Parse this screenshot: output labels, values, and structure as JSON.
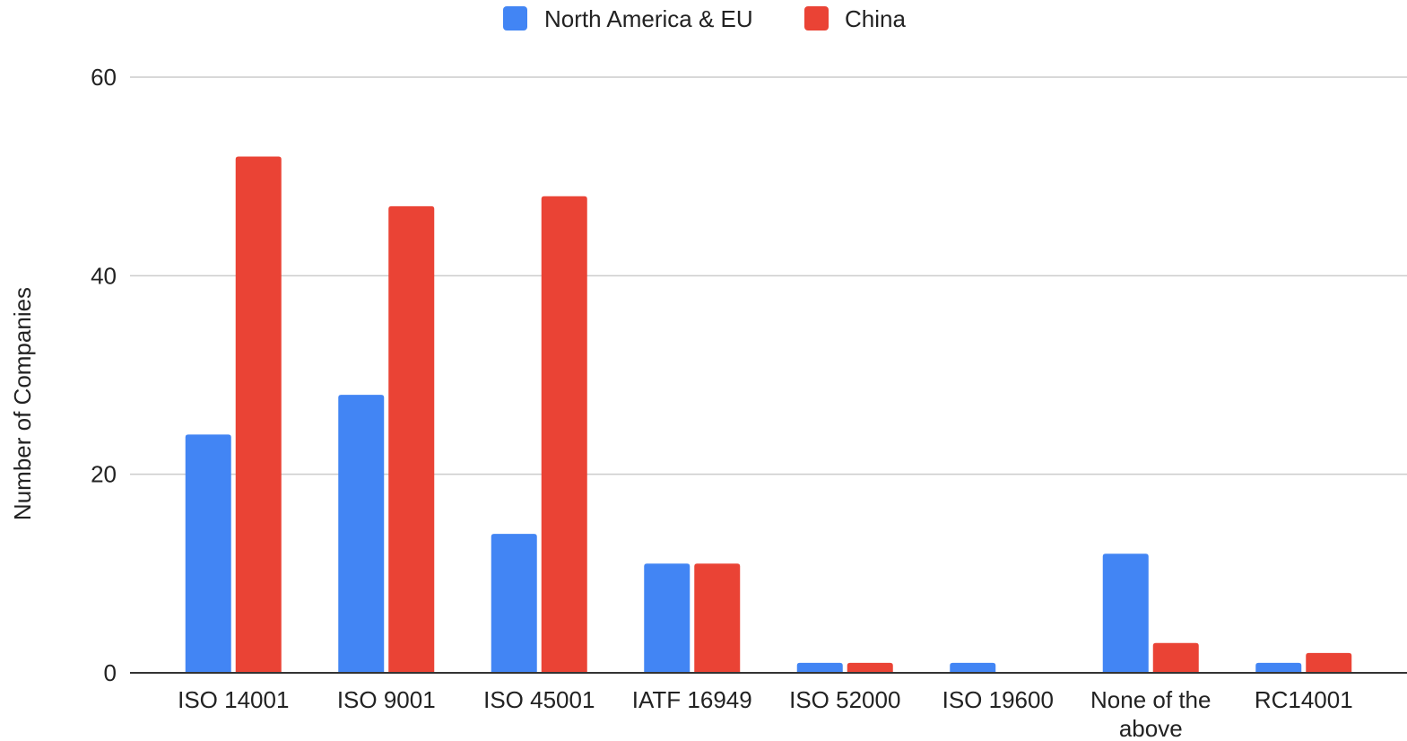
{
  "chart_data": {
    "type": "bar",
    "title": "",
    "xlabel": "",
    "ylabel": "Number of Companies",
    "ylim": [
      0,
      60
    ],
    "yticks": [
      0,
      20,
      40,
      60
    ],
    "grid": true,
    "legend_position": "top-center",
    "categories": [
      [
        "ISO 14001"
      ],
      [
        "ISO 9001"
      ],
      [
        "ISO 45001"
      ],
      [
        "IATF 16949"
      ],
      [
        "ISO 52000"
      ],
      [
        "ISO 19600"
      ],
      [
        "None of the",
        "above"
      ],
      [
        "RC14001"
      ]
    ],
    "series": [
      {
        "name": "North America & EU",
        "color": "#4285F4",
        "values": [
          24,
          28,
          14,
          11,
          1,
          1,
          12,
          1
        ]
      },
      {
        "name": "China",
        "color": "#EA4335",
        "values": [
          52,
          47,
          48,
          11,
          1,
          0,
          3,
          2
        ]
      }
    ]
  }
}
